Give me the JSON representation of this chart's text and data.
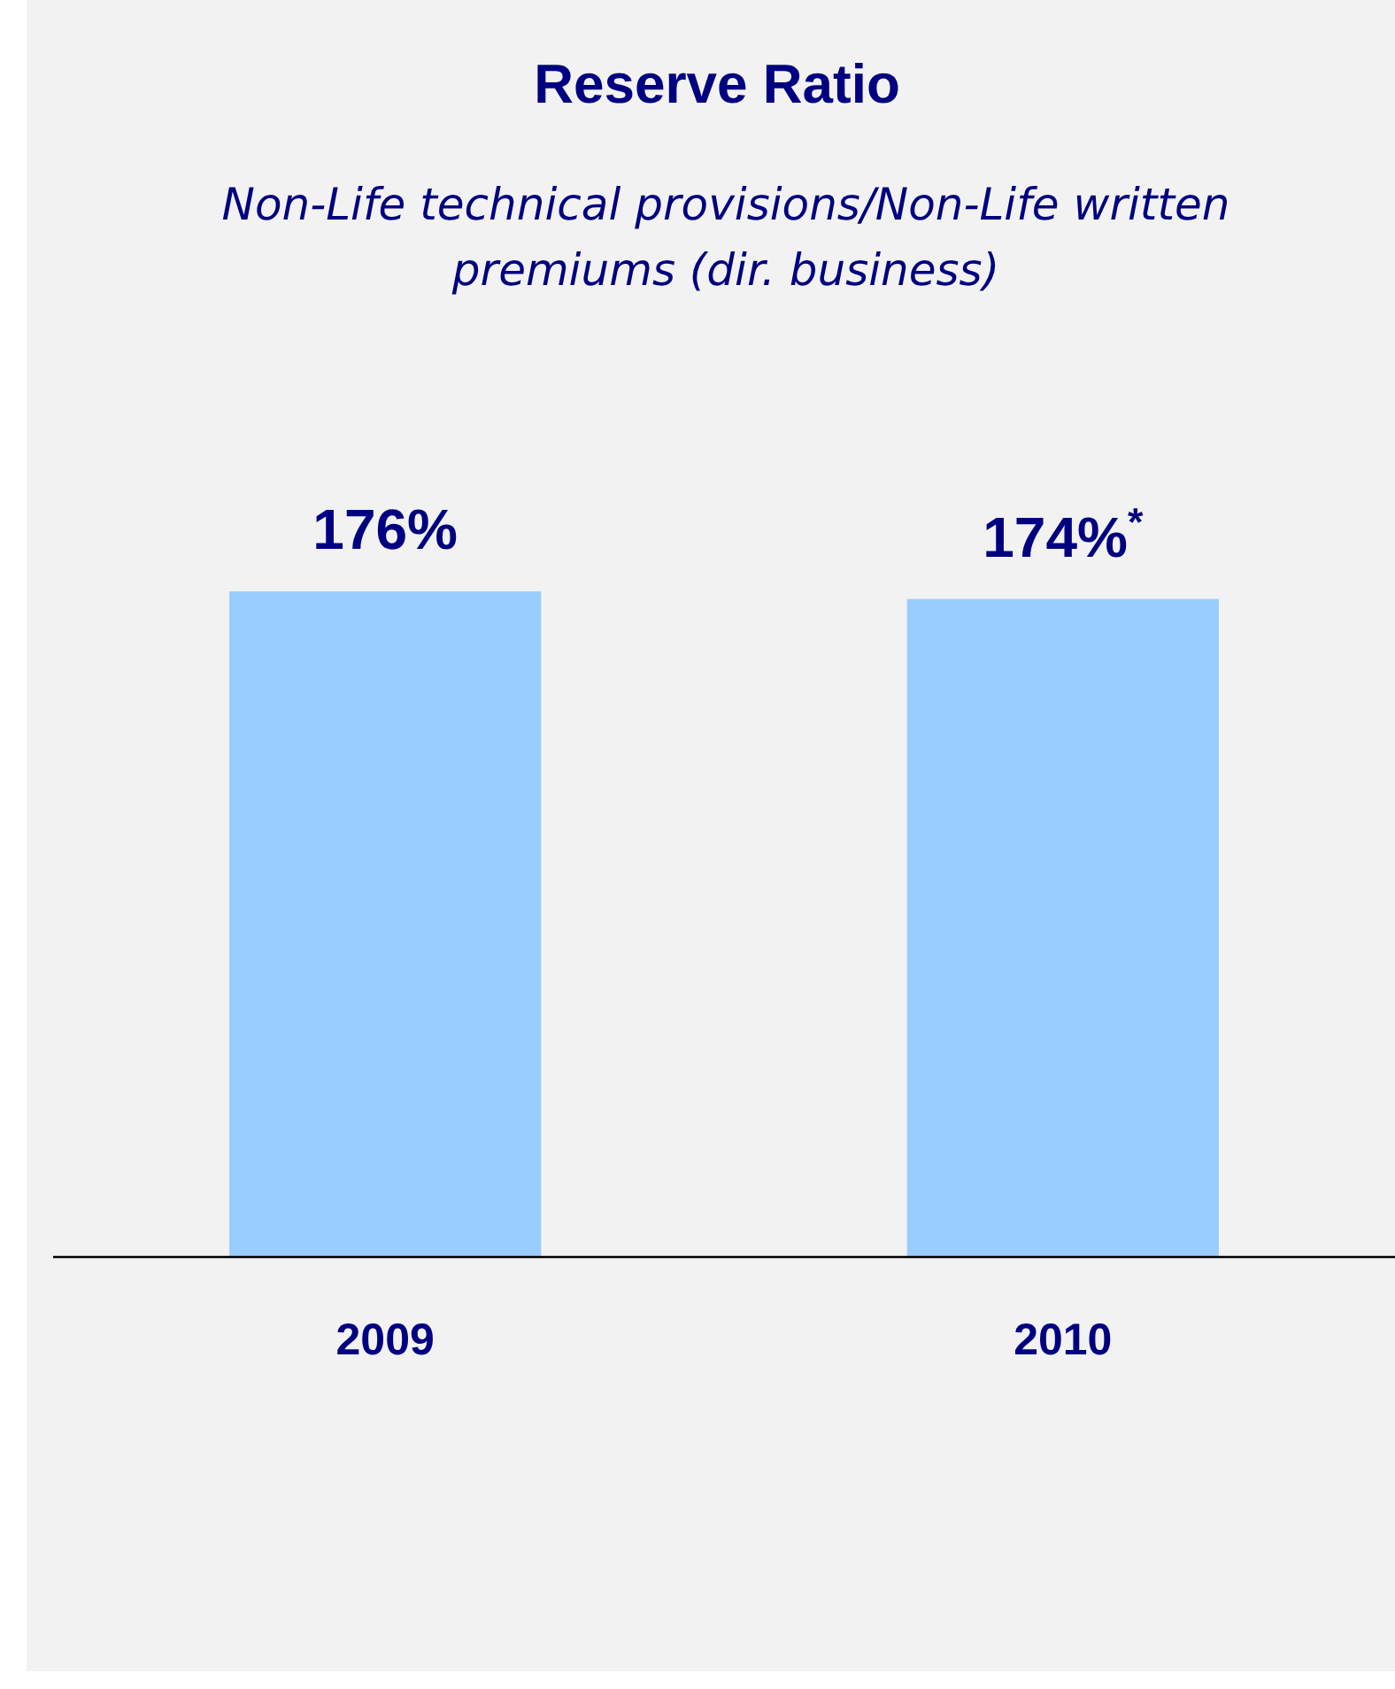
{
  "chart_data": {
    "type": "bar",
    "title": "Reserve Ratio",
    "subtitle": "Non-Life technical provisions/Non-Life written premiums (dir. business)",
    "categories": [
      "2009",
      "2010"
    ],
    "values": [
      176,
      174
    ],
    "value_labels": [
      "176%",
      "174%$^{*}$"
    ],
    "color": "#99ccff"
  }
}
